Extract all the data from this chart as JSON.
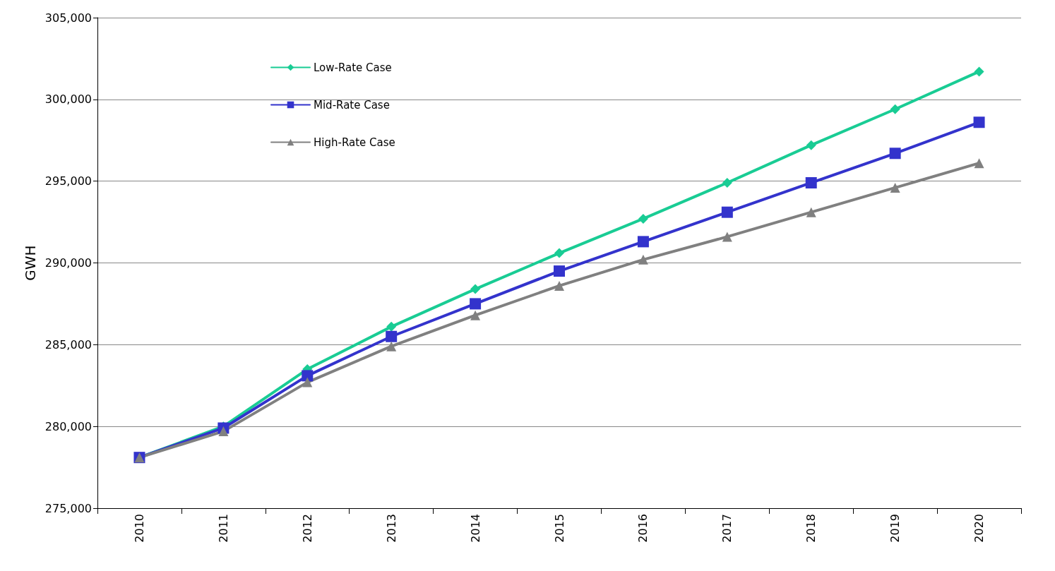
{
  "chart_data": {
    "type": "line",
    "ylabel": "GWH",
    "categories": [
      "2010",
      "2011",
      "2012",
      "2013",
      "2014",
      "2015",
      "2016",
      "2017",
      "2018",
      "2019",
      "2020"
    ],
    "series": [
      {
        "name": "Low-Rate Case",
        "color": "#19cc94",
        "marker": "diamond",
        "values": [
          278100,
          280000,
          283500,
          286100,
          288400,
          290600,
          292700,
          294900,
          297200,
          299400,
          301700
        ]
      },
      {
        "name": "Mid-Rate Case",
        "color": "#3333cc",
        "marker": "square",
        "values": [
          278100,
          279900,
          283100,
          285500,
          287500,
          289500,
          291300,
          293100,
          294900,
          296700,
          298600
        ]
      },
      {
        "name": "High-Rate Case",
        "color": "#808080",
        "marker": "triangle",
        "values": [
          278100,
          279700,
          282700,
          284900,
          286800,
          288600,
          290200,
          291600,
          293100,
          294600,
          296100
        ]
      }
    ],
    "ylim": [
      275000,
      305000
    ],
    "yticks": [
      {
        "value": 275000,
        "label": "275,000"
      },
      {
        "value": 280000,
        "label": "280,000"
      },
      {
        "value": 285000,
        "label": "285,000"
      },
      {
        "value": 290000,
        "label": "290,000"
      },
      {
        "value": 295000,
        "label": "295,000"
      },
      {
        "value": 300000,
        "label": "300,000"
      },
      {
        "value": 305000,
        "label": "305,000"
      }
    ],
    "grid": "y",
    "legend": "top left",
    "line_style": "solid"
  }
}
